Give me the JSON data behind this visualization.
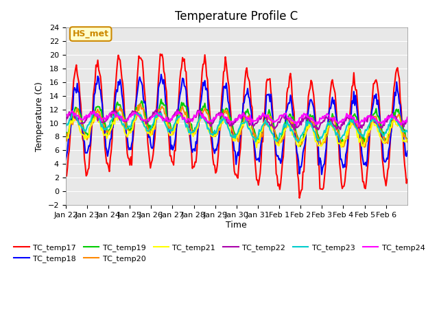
{
  "title": "Temperature Profile C",
  "xlabel": "Time",
  "ylabel": "Temperature (C)",
  "ylim": [
    -2,
    24
  ],
  "yticks": [
    -2,
    0,
    2,
    4,
    6,
    8,
    10,
    12,
    14,
    16,
    18,
    20,
    22,
    24
  ],
  "x_labels": [
    "Jan 22",
    "Jan 23",
    "Jan 24",
    "Jan 25",
    "Jan 26",
    "Jan 27",
    "Jan 28",
    "Jan 29",
    "Jan 30",
    "Jan 31",
    "Feb 1",
    "Feb 2",
    "Feb 3",
    "Feb 4",
    "Feb 5",
    "Feb 6"
  ],
  "series": {
    "TC_temp17": {
      "color": "#FF0000",
      "lw": 1.5
    },
    "TC_temp18": {
      "color": "#0000FF",
      "lw": 1.5
    },
    "TC_temp19": {
      "color": "#00CC00",
      "lw": 1.5
    },
    "TC_temp20": {
      "color": "#FF8800",
      "lw": 1.5
    },
    "TC_temp21": {
      "color": "#FFFF00",
      "lw": 1.5
    },
    "TC_temp22": {
      "color": "#AA00AA",
      "lw": 1.5
    },
    "TC_temp23": {
      "color": "#00CCCC",
      "lw": 1.5
    },
    "TC_temp24": {
      "color": "#FF00FF",
      "lw": 1.5
    }
  },
  "annotation_text": "HS_met",
  "annotation_color": "#CC8800",
  "bg_color": "#E8E8E8",
  "grid_color": "#FFFFFF"
}
